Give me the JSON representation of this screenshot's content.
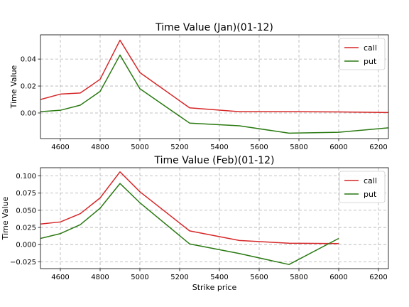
{
  "chart_data": [
    {
      "type": "line",
      "title": "Time Value (Jan)(01-12)",
      "xlabel": "",
      "ylabel": "Time Value",
      "xlim": [
        4500,
        6250
      ],
      "ylim": [
        -0.019,
        0.058
      ],
      "xticks": [
        4600,
        4800,
        5000,
        5200,
        5400,
        5600,
        5800,
        6000,
        6200
      ],
      "yticks": [
        0.0,
        0.02,
        0.04
      ],
      "ytick_labels": [
        "0.00",
        "0.02",
        "0.04"
      ],
      "grid": true,
      "legend_position": "top-right",
      "series": [
        {
          "name": "call",
          "color": "#d62728",
          "x": [
            4500,
            4600,
            4700,
            4800,
            4900,
            5000,
            5250,
            5500,
            5750,
            6000,
            6250
          ],
          "y": [
            0.01,
            0.014,
            0.0148,
            0.025,
            0.054,
            0.03,
            0.0038,
            0.001,
            0.001,
            0.0008,
            0.0003
          ]
        },
        {
          "name": "put",
          "color": "#2a7a12",
          "x": [
            4500,
            4600,
            4700,
            4800,
            4900,
            5000,
            5250,
            5500,
            5750,
            6000,
            6250
          ],
          "y": [
            0.001,
            0.002,
            0.0058,
            0.016,
            0.043,
            0.018,
            -0.0075,
            -0.0095,
            -0.015,
            -0.0143,
            -0.011
          ]
        }
      ]
    },
    {
      "type": "line",
      "title": "Time Value (Feb)(01-12)",
      "xlabel": "Strike price",
      "ylabel": "Time Value",
      "xlim": [
        4500,
        6250
      ],
      "ylim": [
        -0.035,
        0.112
      ],
      "xticks": [
        4600,
        4800,
        5000,
        5200,
        5400,
        5600,
        5800,
        6000,
        6200
      ],
      "yticks": [
        -0.025,
        0.0,
        0.025,
        0.05,
        0.075,
        0.1
      ],
      "ytick_labels": [
        "−0.025",
        "0.000",
        "0.025",
        "0.050",
        "0.075",
        "0.100"
      ],
      "grid": true,
      "legend_position": "top-right",
      "series": [
        {
          "name": "call",
          "color": "#d62728",
          "x": [
            4500,
            4600,
            4700,
            4800,
            4900,
            5000,
            5250,
            5500,
            5750,
            6000
          ],
          "y": [
            0.03,
            0.033,
            0.045,
            0.068,
            0.106,
            0.077,
            0.02,
            0.006,
            0.002,
            0.0015
          ]
        },
        {
          "name": "put",
          "color": "#2a7a12",
          "x": [
            4500,
            4600,
            4700,
            4800,
            4900,
            5000,
            5250,
            5500,
            5750,
            6000
          ],
          "y": [
            0.009,
            0.016,
            0.029,
            0.053,
            0.089,
            0.061,
            0.001,
            -0.013,
            -0.029,
            0.009
          ]
        }
      ]
    }
  ]
}
